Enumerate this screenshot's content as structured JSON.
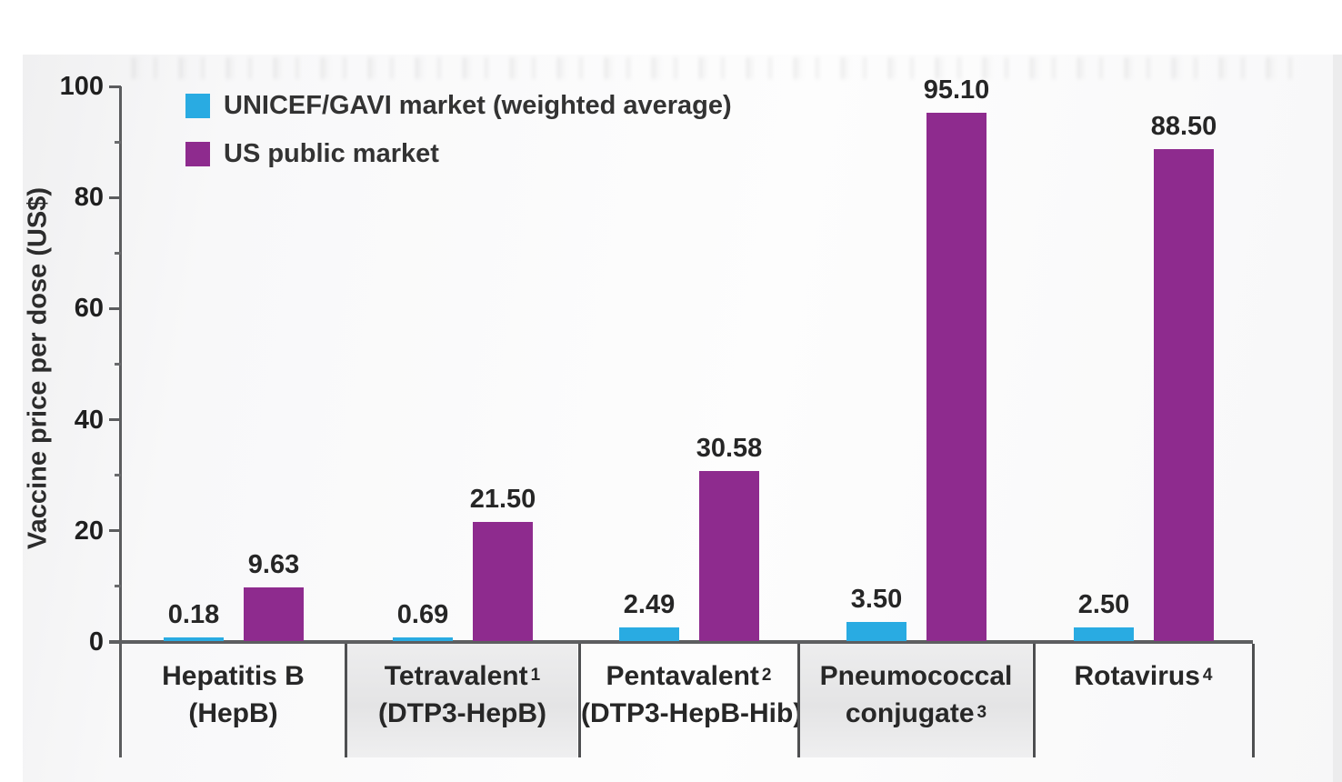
{
  "chart_data": {
    "type": "bar",
    "title": "",
    "ylabel": "Vaccine price per dose (US$)",
    "xlabel": "",
    "ylim": [
      0,
      100
    ],
    "y_major_ticks": [
      0,
      20,
      40,
      60,
      80,
      100
    ],
    "y_minor_ticks": [
      10,
      30,
      50,
      70,
      90
    ],
    "grid": false,
    "legend_position": "top-left inside plot area",
    "categories": [
      {
        "line1": "Hepatitis B",
        "sup1": "",
        "line2": "(HepB)",
        "sup2": "",
        "shaded": false
      },
      {
        "line1": "Tetravalent",
        "sup1": "1",
        "line2": "(DTP3-HepB)",
        "sup2": "",
        "shaded": true
      },
      {
        "line1": "Pentavalent",
        "sup1": "2",
        "line2": "(DTP3-HepB-Hib)",
        "sup2": "",
        "shaded": false
      },
      {
        "line1": "Pneumococcal",
        "sup1": "",
        "line2": "conjugate",
        "sup2": "3",
        "shaded": true
      },
      {
        "line1": "Rotavirus",
        "sup1": "4",
        "line2": "",
        "sup2": "",
        "shaded": false
      }
    ],
    "series": [
      {
        "name": "UNICEF/GAVI market (weighted average)",
        "color": "#29abe2",
        "values": [
          0.18,
          0.69,
          2.49,
          3.5,
          2.5
        ],
        "value_labels": [
          "0.18",
          "0.69",
          "2.49",
          "3.50",
          "2.50"
        ]
      },
      {
        "name": "US public market",
        "color": "#8e2b8e",
        "values": [
          9.63,
          21.5,
          30.58,
          95.1,
          88.5
        ],
        "value_labels": [
          "9.63",
          "21.50",
          "30.58",
          "95.10",
          "88.50"
        ]
      }
    ]
  },
  "colors": {
    "series_unicef_gavi": "#29abe2",
    "series_us_public": "#8e2b8e",
    "axis": "#5b5c5e",
    "text": "#262626",
    "shaded_category_box": "#e7e7e8",
    "panel_background": "#f7f7f8"
  }
}
